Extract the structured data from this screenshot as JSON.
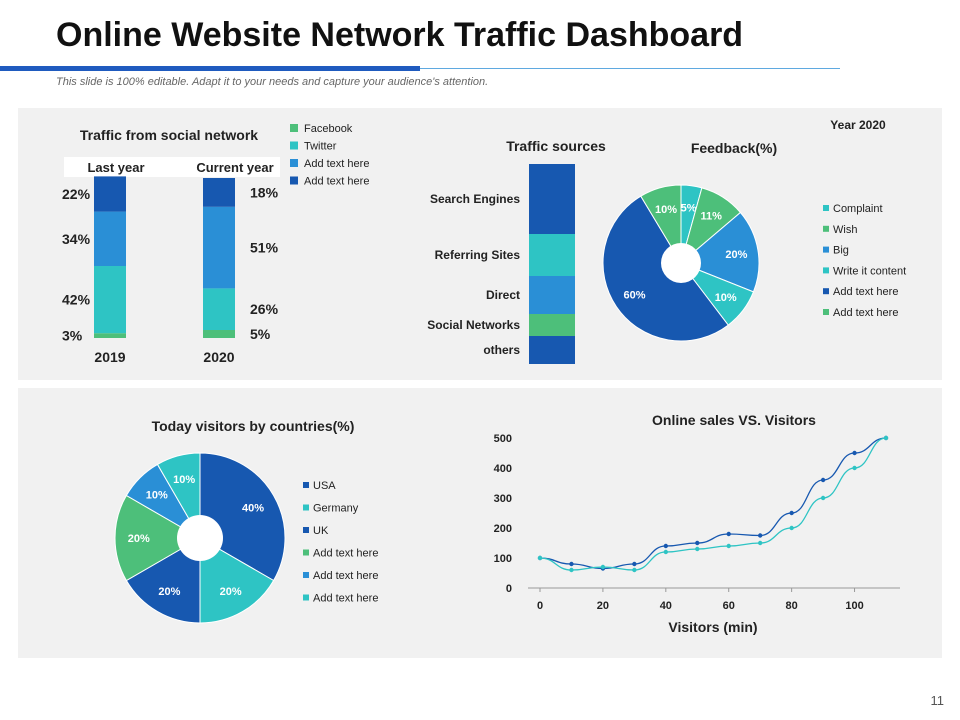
{
  "title": "Online Website Network Traffic Dashboard",
  "subtitle": "This slide is 100% editable. Adapt it to your needs and capture your audience's attention.",
  "page_number": "11",
  "colors": {
    "facebook": "#4dbf7a",
    "twitter": "#2ec4c4",
    "add1": "#2a8fd6",
    "add2": "#1758b0",
    "dark": "#1f5bbf"
  },
  "chart_data": [
    {
      "type": "bar",
      "title": "Traffic from social network",
      "header_left": "Last year",
      "header_right": "Current year",
      "categories": [
        "2019",
        "2020"
      ],
      "stacking": "stacked-100",
      "series": [
        {
          "name": "Facebook",
          "color": "#4dbf7a",
          "values": [
            3,
            5
          ],
          "labels": [
            "3%",
            "5%"
          ]
        },
        {
          "name": "Twitter",
          "color": "#2ec4c4",
          "values": [
            42,
            26
          ],
          "labels": [
            "42%",
            "26%"
          ]
        },
        {
          "name": "Add text here",
          "color": "#2a8fd6",
          "values": [
            34,
            51
          ],
          "labels": [
            "34%",
            "51%"
          ]
        },
        {
          "name": "Add text here",
          "color": "#1758b0",
          "values": [
            22,
            18
          ],
          "labels": [
            "22%",
            "18%"
          ]
        }
      ]
    },
    {
      "type": "bar",
      "title": "Traffic sources",
      "stacking": "stacked",
      "categories": [
        "Search Engines",
        "Referring Sites",
        "Direct",
        "Social Networks",
        "others"
      ],
      "values": [
        70,
        42,
        38,
        22,
        28
      ],
      "colors": [
        "#1758b0",
        "#2ec4c4",
        "#2a8fd6",
        "#4dbf7a",
        "#1758b0"
      ]
    },
    {
      "type": "pie",
      "title": "Feedback(%)",
      "annotation": "Year 2020",
      "slices": [
        {
          "label": "Complaint",
          "value": 5,
          "text": "5%",
          "color": "#2ec4c4"
        },
        {
          "label": "Wish",
          "value": 11,
          "text": "11%",
          "color": "#4dbf7a"
        },
        {
          "label": "Big",
          "value": 20,
          "text": "20%",
          "color": "#2a8fd6"
        },
        {
          "label": "Write it content",
          "value": 10,
          "text": "10%",
          "color": "#2ec4c4"
        },
        {
          "label": "Add text here",
          "value": 60,
          "text": "60%",
          "color": "#1758b0"
        },
        {
          "label": "Add text here",
          "value": 10,
          "text": "10%",
          "color": "#4dbf7a"
        }
      ]
    },
    {
      "type": "pie",
      "title": "Today visitors by countries(%)",
      "slices": [
        {
          "label": "USA",
          "value": 40,
          "text": "40%",
          "color": "#1758b0"
        },
        {
          "label": "Germany",
          "value": 20,
          "text": "20%",
          "color": "#2ec4c4"
        },
        {
          "label": "UK",
          "value": 20,
          "text": "20%",
          "color": "#1758b0"
        },
        {
          "label": "Add text here",
          "value": 20,
          "text": "20%",
          "color": "#4dbf7a"
        },
        {
          "label": "Add text here",
          "value": 10,
          "text": "10%",
          "color": "#2a8fd6"
        },
        {
          "label": "Add text here",
          "value": 10,
          "text": "10%",
          "color": "#2ec4c4"
        }
      ]
    },
    {
      "type": "line",
      "title": "Online sales VS. Visitors",
      "xlabel": "Visitors (min)",
      "ylabel": "",
      "xlim": [
        0,
        100
      ],
      "ylim": [
        0,
        500
      ],
      "xticks": [
        0,
        20,
        40,
        60,
        80,
        100
      ],
      "yticks": [
        0,
        100,
        200,
        300,
        400,
        500
      ],
      "series": [
        {
          "color": "#1758b0",
          "x": [
            0,
            10,
            20,
            30,
            40,
            50,
            60,
            70,
            80,
            90,
            100,
            110
          ],
          "y": [
            100,
            80,
            65,
            80,
            140,
            150,
            180,
            175,
            250,
            360,
            450,
            500
          ]
        },
        {
          "color": "#2ec4c4",
          "x": [
            0,
            10,
            20,
            30,
            40,
            50,
            60,
            70,
            80,
            90,
            100,
            110
          ],
          "y": [
            100,
            60,
            70,
            60,
            120,
            130,
            140,
            150,
            200,
            300,
            400,
            500
          ]
        }
      ]
    }
  ]
}
